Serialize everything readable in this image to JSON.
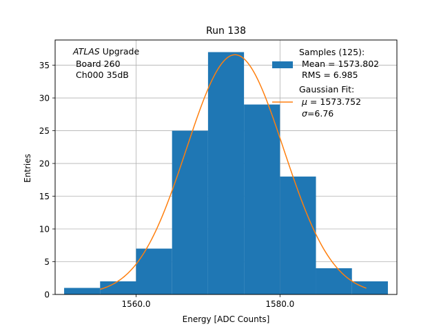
{
  "chart_data": {
    "type": "bar",
    "title": "Run 138",
    "xlabel": "Energy [ADC Counts]",
    "ylabel": "Entries",
    "xlim": [
      1548.75,
      1596.25
    ],
    "ylim": [
      0,
      38.85
    ],
    "grid": true,
    "x_ticks": [
      1560,
      1580
    ],
    "x_tick_labels": [
      "1560.0",
      "1580.0"
    ],
    "y_ticks": [
      0,
      5,
      10,
      15,
      20,
      25,
      30,
      35
    ],
    "y_tick_labels": [
      "0",
      "5",
      "10",
      "15",
      "20",
      "25",
      "30",
      "35"
    ],
    "bins": [
      {
        "lo": 1550,
        "hi": 1555,
        "count": 1
      },
      {
        "lo": 1555,
        "hi": 1560,
        "count": 2
      },
      {
        "lo": 1560,
        "hi": 1565,
        "count": 7
      },
      {
        "lo": 1565,
        "hi": 1570,
        "count": 25
      },
      {
        "lo": 1570,
        "hi": 1575,
        "count": 37
      },
      {
        "lo": 1575,
        "hi": 1580,
        "count": 29
      },
      {
        "lo": 1580,
        "hi": 1585,
        "count": 18
      },
      {
        "lo": 1585,
        "hi": 1590,
        "count": 4
      },
      {
        "lo": 1590,
        "hi": 1595,
        "count": 2
      }
    ],
    "fit": {
      "mu": 1573.752,
      "sigma": 6.76,
      "amplitude": 36.6,
      "x_range": [
        1555,
        1592
      ]
    },
    "annotation": {
      "italic": "ATLAS",
      "rest": " Upgrade",
      "line2": " Board 260",
      "line3": " Ch000 35dB"
    },
    "legend": {
      "placement": "top-right",
      "hist": {
        "lines": [
          "Samples (125):",
          " Mean = 1573.802",
          " RMS = 6.985"
        ]
      },
      "fit": {
        "line1": "Gaussian Fit:",
        "mu_symbol": "μ",
        "mu_text": " = 1573.752",
        "sigma_symbol": "σ",
        "sigma_text": "=6.76"
      }
    },
    "colors": {
      "hist": "#1f77b4",
      "fit": "#ff7f0e",
      "grid": "#b0b0b0"
    }
  }
}
